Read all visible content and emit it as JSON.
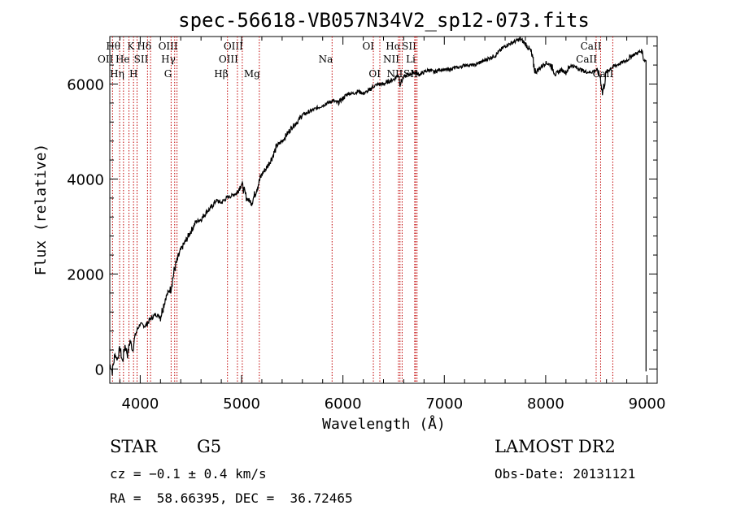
{
  "chart_data": {
    "type": "line",
    "title": "spec-56618-VB057N34V2_sp12-073.fits",
    "xlabel": "Wavelength (Å)",
    "ylabel": "Flux (relative)",
    "xlim": [
      3700,
      9100
    ],
    "ylim": [
      -300,
      7000
    ],
    "x_ticks": [
      4000,
      5000,
      6000,
      7000,
      8000,
      9000
    ],
    "y_ticks": [
      0,
      2000,
      4000,
      6000
    ],
    "series": [
      {
        "color": "#000000",
        "x": [
          3700,
          3725,
          3750,
          3775,
          3800,
          3825,
          3850,
          3875,
          3900,
          3925,
          3950,
          3975,
          4000,
          4050,
          4100,
          4150,
          4200,
          4250,
          4300,
          4350,
          4400,
          4450,
          4500,
          4550,
          4600,
          4650,
          4700,
          4750,
          4800,
          4850,
          4900,
          4950,
          5000,
          5050,
          5100,
          5150,
          5200,
          5250,
          5300,
          5350,
          5400,
          5450,
          5500,
          5550,
          5600,
          5650,
          5700,
          5750,
          5800,
          5850,
          5900,
          5950,
          6000,
          6050,
          6100,
          6150,
          6200,
          6250,
          6300,
          6350,
          6400,
          6450,
          6500,
          6550,
          6563,
          6600,
          6650,
          6700,
          6750,
          6800,
          6850,
          6900,
          6950,
          7000,
          7050,
          7100,
          7150,
          7200,
          7250,
          7300,
          7350,
          7400,
          7450,
          7500,
          7550,
          7600,
          7650,
          7700,
          7750,
          7800,
          7850,
          7900,
          7950,
          8000,
          8050,
          8100,
          8150,
          8200,
          8250,
          8300,
          8350,
          8400,
          8450,
          8500,
          8540,
          8560,
          8600,
          8650,
          8700,
          8750,
          8800,
          8850,
          8900,
          8950,
          8970,
          8990
        ],
        "y": [
          100,
          -50,
          300,
          200,
          450,
          150,
          500,
          300,
          600,
          400,
          700,
          850,
          950,
          900,
          1050,
          1150,
          1100,
          1500,
          1700,
          2200,
          2500,
          2700,
          2900,
          3100,
          3150,
          3300,
          3400,
          3550,
          3500,
          3600,
          3650,
          3700,
          3900,
          3600,
          3500,
          3800,
          4100,
          4250,
          4450,
          4700,
          4800,
          4950,
          5100,
          5200,
          5350,
          5400,
          5450,
          5500,
          5550,
          5600,
          5650,
          5600,
          5700,
          5800,
          5800,
          5850,
          5800,
          5850,
          5950,
          6000,
          6000,
          6050,
          6100,
          6200,
          6000,
          6150,
          6200,
          6250,
          6200,
          6250,
          6300,
          6250,
          6300,
          6300,
          6300,
          6350,
          6350,
          6400,
          6400,
          6400,
          6450,
          6500,
          6550,
          6600,
          6700,
          6800,
          6850,
          6900,
          6950,
          6850,
          6700,
          6250,
          6350,
          6450,
          6400,
          6200,
          6300,
          6250,
          6400,
          6350,
          6300,
          6250,
          6250,
          6300,
          6150,
          5800,
          6250,
          6350,
          6400,
          6450,
          6500,
          6600,
          6650,
          6700,
          6500,
          6500
        ]
      },
      {
        "color": "#000000",
        "x": [
          8990,
          8990
        ],
        "y": [
          6500,
          -50
        ]
      }
    ],
    "spectral_lines": [
      {
        "label": "Hθ",
        "x": 3797,
        "row": 0,
        "anchor": "end"
      },
      {
        "label": "K",
        "x": 3934,
        "row": 0,
        "anchor": "end"
      },
      {
        "label": "Hδ",
        "x": 4102,
        "row": 0,
        "anchor": "end"
      },
      {
        "label": "OII",
        "x": 3727,
        "row": 1,
        "anchor": "end"
      },
      {
        "label": "He",
        "x": 3889,
        "row": 1,
        "anchor": "end"
      },
      {
        "label": "Hη",
        "x": 3835,
        "row": 2,
        "anchor": "end"
      },
      {
        "label": "H",
        "x": 3969,
        "row": 2,
        "anchor": "end"
      },
      {
        "label": "OIII",
        "x": 4363,
        "row": 0,
        "anchor": "end"
      },
      {
        "label": "Hγ",
        "x": 4340,
        "row": 1,
        "anchor": "end"
      },
      {
        "label": "G",
        "x": 4305,
        "row": 2,
        "anchor": "end"
      },
      {
        "label": "SII",
        "x": 4072,
        "row": 1,
        "anchor": "end"
      },
      {
        "label": "OIII",
        "x": 5007,
        "row": 0,
        "anchor": "end"
      },
      {
        "label": "OIII",
        "x": 4959,
        "row": 1,
        "anchor": "end"
      },
      {
        "label": "Hβ",
        "x": 4861,
        "row": 2,
        "anchor": "end"
      },
      {
        "label": "Mg",
        "x": 5175,
        "row": 2,
        "anchor": "end"
      },
      {
        "label": "Na",
        "x": 5893,
        "row": 1,
        "anchor": "end"
      },
      {
        "label": "OI",
        "x": 6300,
        "row": 0,
        "anchor": "end"
      },
      {
        "label": "OI",
        "x": 6364,
        "row": 2,
        "anchor": "end"
      },
      {
        "label": "Hα",
        "x": 6563,
        "row": 0,
        "anchor": "end"
      },
      {
        "label": "SII",
        "x": 6716,
        "row": 0,
        "anchor": "end"
      },
      {
        "label": "NII",
        "x": 6548,
        "row": 1,
        "anchor": "end"
      },
      {
        "label": "Li",
        "x": 6708,
        "row": 1,
        "anchor": "end"
      },
      {
        "label": "NII",
        "x": 6584,
        "row": 2,
        "anchor": "end"
      },
      {
        "label": "SII",
        "x": 6731,
        "row": 2,
        "anchor": "end"
      },
      {
        "label": "CaII",
        "x": 8542,
        "row": 0,
        "anchor": "end"
      },
      {
        "label": "CaII",
        "x": 8498,
        "row": 1,
        "anchor": "end"
      },
      {
        "label": "CaII",
        "x": 8662,
        "row": 2,
        "anchor": "end"
      }
    ]
  },
  "footer": {
    "class_label": "STAR",
    "subclass_label": "G5",
    "survey": "LAMOST DR2",
    "cz": "cz = −0.1 ± 0.4 km/s",
    "obs_date": "Obs-Date: 20131121",
    "radec": "RA =  58.66395, DEC =  36.72465"
  }
}
